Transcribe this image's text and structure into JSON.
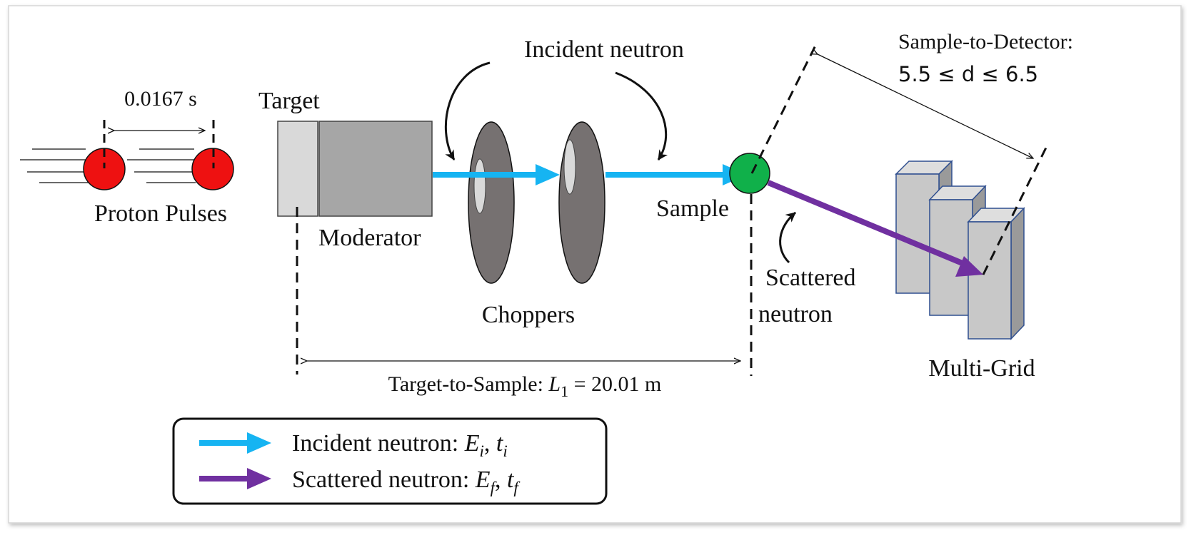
{
  "labels": {
    "period": "0.0167 s",
    "target": "Target",
    "proton_pulses": "Proton Pulses",
    "moderator": "Moderator",
    "incident_neutron": "Incident neutron",
    "choppers": "Choppers",
    "sample": "Sample",
    "scattered_1": "Scattered",
    "scattered_2": "neutron",
    "multigrid": "Multi-Grid",
    "s2d_title": "Sample-to-Detector:",
    "s2d_range": "5.5 ≤ d ≤ 6.5",
    "t2s_prefix": "Target-to-Sample: ",
    "t2s_var": "L",
    "t2s_sub": "1",
    "t2s_value": " = 20.01 m"
  },
  "legend": {
    "items": [
      {
        "label": "Incident neutron: ",
        "e": "E",
        "e_sub": "i",
        "t": "t",
        "t_sub": "i",
        "color": "#16b4f2"
      },
      {
        "label": "Scattered neutron: ",
        "e": "E",
        "e_sub": "f",
        "t": "t",
        "t_sub": "f",
        "color": "#7030a0"
      }
    ]
  },
  "colors": {
    "proton": "#ee1111",
    "sample": "#10b04a",
    "incident": "#16b4f2",
    "scattered": "#7030a0",
    "target": "#d9d9d9",
    "moderator": "#a6a6a6",
    "chopper": "#767171",
    "detector_face": "#c8c8c8",
    "detector_side": "#9a9a9a",
    "detector_top": "#dedede",
    "detector_edge": "#2f4f8f"
  }
}
